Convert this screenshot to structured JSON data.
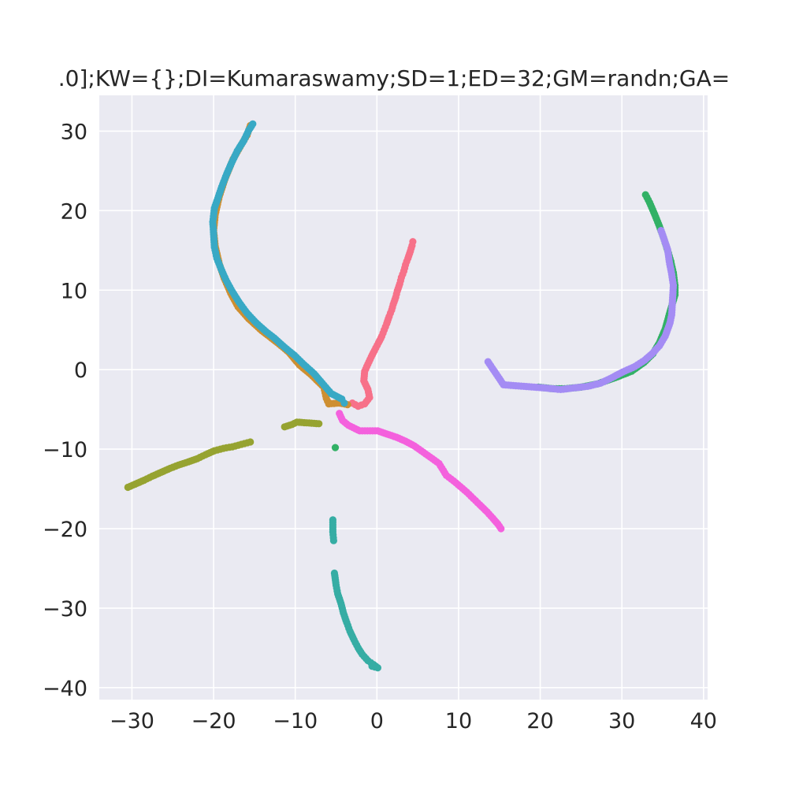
{
  "chart_data": {
    "type": "scatter",
    "title": ".0];KW={};DI=Kumaraswamy;SD=1;ED=32;GM=randn;GA=",
    "xlabel": "",
    "ylabel": "",
    "xlim": [
      -34,
      40.5
    ],
    "ylim": [
      -41.5,
      34.5
    ],
    "x_ticks": [
      -30,
      -20,
      -10,
      0,
      10,
      20,
      30,
      40
    ],
    "y_ticks": [
      -40,
      -30,
      -20,
      -10,
      0,
      10,
      20,
      30
    ],
    "x_tick_labels": [
      "−30",
      "−20",
      "−10",
      "0",
      "10",
      "20",
      "30",
      "40"
    ],
    "y_tick_labels": [
      "−40",
      "−30",
      "−20",
      "−10",
      "0",
      "10",
      "20",
      "30"
    ],
    "grid": true,
    "background": "#eaeaf2",
    "series": [
      {
        "color": "#f77189",
        "points": [
          [
            4.4,
            16.1
          ],
          [
            4.3,
            15.6
          ],
          [
            4.1,
            14.9
          ],
          [
            3.8,
            14.0
          ],
          [
            3.5,
            13.2
          ],
          [
            3.3,
            12.4
          ],
          [
            3.0,
            11.6
          ],
          [
            2.8,
            10.8
          ],
          [
            2.5,
            9.9
          ],
          [
            2.3,
            9.1
          ],
          [
            2.0,
            8.2
          ],
          [
            1.8,
            7.5
          ],
          [
            1.5,
            6.7
          ],
          [
            1.2,
            5.8
          ],
          [
            0.9,
            5.0
          ],
          [
            0.6,
            4.2
          ],
          [
            0.2,
            3.4
          ],
          [
            -0.3,
            2.4
          ],
          [
            -0.7,
            1.6
          ],
          [
            -1.1,
            0.7
          ],
          [
            -1.5,
            -0.2
          ],
          [
            -1.6,
            -1.4
          ],
          [
            -1.1,
            -2.5
          ],
          [
            -0.9,
            -3.5
          ],
          [
            -1.5,
            -4.3
          ],
          [
            -2.3,
            -4.6
          ],
          [
            -3.0,
            -4.2
          ]
        ]
      },
      {
        "color": "#ce8f31",
        "points": [
          [
            -15.5,
            30.7
          ],
          [
            -15.9,
            29.5
          ],
          [
            -16.6,
            28.3
          ],
          [
            -17.6,
            26.5
          ],
          [
            -18.6,
            24.0
          ],
          [
            -19.3,
            21.8
          ],
          [
            -19.8,
            19.5
          ],
          [
            -20.0,
            17.5
          ],
          [
            -19.8,
            15.5
          ],
          [
            -19.3,
            13.3
          ],
          [
            -18.7,
            11.5
          ],
          [
            -17.9,
            9.6
          ],
          [
            -17.0,
            7.9
          ],
          [
            -15.7,
            6.4
          ],
          [
            -14.1,
            4.9
          ],
          [
            -12.2,
            3.4
          ],
          [
            -10.8,
            2.2
          ],
          [
            -9.5,
            0.6
          ],
          [
            -8.1,
            -0.6
          ],
          [
            -6.5,
            -2.2
          ],
          [
            -6.2,
            -3.6
          ],
          [
            -5.9,
            -4.3
          ],
          [
            -4.6,
            -4.2
          ],
          [
            -3.6,
            -4.4
          ]
        ]
      },
      {
        "color": "#96a331",
        "points": [
          [
            -30.5,
            -14.8
          ],
          [
            -29.6,
            -14.4
          ],
          [
            -28.5,
            -13.9
          ],
          [
            -27.5,
            -13.4
          ],
          [
            -26.4,
            -12.9
          ],
          [
            -25.3,
            -12.4
          ],
          [
            -24.3,
            -12.0
          ],
          [
            -23.1,
            -11.6
          ],
          [
            -22.0,
            -11.2
          ],
          [
            -21.0,
            -10.7
          ],
          [
            -19.9,
            -10.2
          ],
          [
            -18.8,
            -9.9
          ],
          [
            -17.7,
            -9.7
          ],
          [
            -16.6,
            -9.4
          ],
          [
            -15.5,
            -9.1
          ],
          [
            -11.3,
            -7.2
          ],
          [
            -10.4,
            -6.9
          ],
          [
            -9.8,
            -6.6
          ],
          [
            -7.1,
            -6.8
          ]
        ]
      },
      {
        "color": "#32b166",
        "points": [
          [
            32.9,
            22.0
          ],
          [
            33.4,
            21.0
          ],
          [
            33.9,
            19.8
          ],
          [
            34.5,
            18.3
          ],
          [
            35.1,
            16.6
          ],
          [
            35.6,
            15.0
          ],
          [
            36.0,
            13.6
          ],
          [
            36.3,
            12.2
          ],
          [
            36.5,
            10.6
          ],
          [
            36.5,
            9.4
          ],
          [
            35.9,
            7.3
          ],
          [
            35.3,
            5.1
          ],
          [
            34.6,
            3.4
          ],
          [
            33.8,
            2.0
          ],
          [
            32.7,
            0.9
          ],
          [
            31.2,
            -0.2
          ],
          [
            29.2,
            -1.0
          ],
          [
            27.0,
            -1.8
          ],
          [
            25.0,
            -2.2
          ],
          [
            23.0,
            -2.4
          ],
          [
            21.6,
            -2.4
          ],
          [
            19.8,
            -2.2
          ],
          [
            -5.1,
            -9.8
          ]
        ]
      },
      {
        "color": "#36ada4",
        "points": [
          [
            -5.4,
            -18.9
          ],
          [
            -5.4,
            -20.4
          ],
          [
            -5.3,
            -21.5
          ],
          [
            -5.2,
            -25.6
          ],
          [
            -5.0,
            -27.1
          ],
          [
            -4.8,
            -28.2
          ],
          [
            -4.4,
            -29.4
          ],
          [
            -4.1,
            -30.6
          ],
          [
            -3.7,
            -31.8
          ],
          [
            -3.3,
            -32.9
          ],
          [
            -2.8,
            -34.0
          ],
          [
            -2.3,
            -35.0
          ],
          [
            -1.8,
            -35.8
          ],
          [
            -1.1,
            -36.6
          ],
          [
            -0.4,
            -37.1
          ],
          [
            0.1,
            -37.5
          ],
          [
            -0.6,
            -37.3
          ]
        ]
      },
      {
        "color": "#38a9c5",
        "points": [
          [
            -15.2,
            30.9
          ],
          [
            -15.7,
            30.1
          ],
          [
            -16.3,
            28.8
          ],
          [
            -17.1,
            27.5
          ],
          [
            -17.8,
            26.0
          ],
          [
            -18.4,
            24.6
          ],
          [
            -19.0,
            23.0
          ],
          [
            -19.5,
            21.5
          ],
          [
            -19.9,
            20.3
          ],
          [
            -20.1,
            18.6
          ],
          [
            -20.0,
            17.0
          ],
          [
            -19.9,
            15.4
          ],
          [
            -19.6,
            14.0
          ],
          [
            -19.1,
            12.7
          ],
          [
            -18.5,
            11.3
          ],
          [
            -17.7,
            9.8
          ],
          [
            -16.9,
            8.5
          ],
          [
            -15.9,
            7.1
          ],
          [
            -14.8,
            5.9
          ],
          [
            -13.6,
            4.8
          ],
          [
            -12.6,
            4.0
          ],
          [
            -11.3,
            2.8
          ],
          [
            -10.1,
            1.8
          ],
          [
            -8.9,
            0.6
          ],
          [
            -7.7,
            -0.5
          ],
          [
            -6.7,
            -1.7
          ],
          [
            -5.6,
            -3.0
          ],
          [
            -4.3,
            -3.7
          ],
          [
            -4.0,
            -4.2
          ]
        ]
      },
      {
        "color": "#a48cf4",
        "points": [
          [
            13.6,
            1.0
          ],
          [
            15.5,
            -1.9
          ],
          [
            16.7,
            -2.0
          ],
          [
            18.0,
            -2.1
          ],
          [
            20.5,
            -2.3
          ],
          [
            21.5,
            -2.4
          ],
          [
            22.5,
            -2.5
          ],
          [
            24.1,
            -2.3
          ],
          [
            25.8,
            -2.1
          ],
          [
            27.4,
            -1.7
          ],
          [
            28.8,
            -1.0
          ],
          [
            30.1,
            -0.3
          ],
          [
            31.6,
            0.4
          ],
          [
            32.8,
            1.2
          ],
          [
            33.7,
            2.0
          ],
          [
            34.6,
            3.0
          ],
          [
            35.3,
            4.2
          ],
          [
            35.9,
            5.9
          ],
          [
            36.1,
            6.9
          ],
          [
            36.3,
            10.6
          ],
          [
            36.1,
            12.0
          ],
          [
            35.8,
            13.6
          ],
          [
            35.6,
            15.1
          ],
          [
            34.8,
            17.5
          ]
        ]
      },
      {
        "color": "#f461dd",
        "points": [
          [
            -4.6,
            -5.5
          ],
          [
            -4.2,
            -6.4
          ],
          [
            -3.5,
            -7.0
          ],
          [
            -2.1,
            -7.7
          ],
          [
            0.1,
            -7.7
          ],
          [
            1.2,
            -8.1
          ],
          [
            2.4,
            -8.5
          ],
          [
            3.5,
            -9.0
          ],
          [
            4.6,
            -9.6
          ],
          [
            5.7,
            -10.4
          ],
          [
            6.8,
            -11.2
          ],
          [
            7.6,
            -11.8
          ],
          [
            8.5,
            -13.3
          ],
          [
            9.4,
            -14.0
          ],
          [
            10.2,
            -14.7
          ],
          [
            11.0,
            -15.4
          ],
          [
            11.8,
            -16.2
          ],
          [
            12.6,
            -17.0
          ],
          [
            13.5,
            -17.9
          ],
          [
            14.2,
            -18.7
          ],
          [
            14.8,
            -19.4
          ],
          [
            15.2,
            -20.0
          ]
        ]
      }
    ]
  }
}
